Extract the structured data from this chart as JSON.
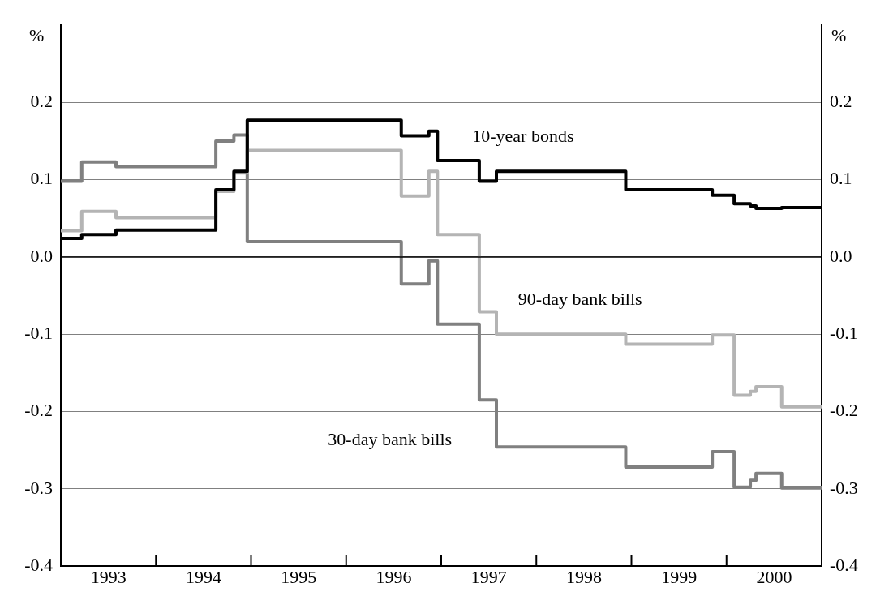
{
  "chart_data": {
    "type": "step",
    "ylabel": "%",
    "y2label": "%",
    "xlim": [
      1993,
      2001
    ],
    "xticks": [
      {
        "value": 1993.5,
        "label": "1993"
      },
      {
        "value": 1994,
        "label": null
      },
      {
        "value": 1994.5,
        "label": "1994"
      },
      {
        "value": 1995,
        "label": null
      },
      {
        "value": 1995.5,
        "label": "1995"
      },
      {
        "value": 1996,
        "label": null
      },
      {
        "value": 1996.5,
        "label": "1996"
      },
      {
        "value": 1997,
        "label": null
      },
      {
        "value": 1997.5,
        "label": "1997"
      },
      {
        "value": 1998,
        "label": null
      },
      {
        "value": 1998.5,
        "label": "1998"
      },
      {
        "value": 1999,
        "label": null
      },
      {
        "value": 1999.5,
        "label": "1999"
      },
      {
        "value": 2000,
        "label": null
      },
      {
        "value": 2000.5,
        "label": "2000"
      }
    ],
    "ylim": [
      -0.4,
      0.3
    ],
    "yticks": [
      -0.4,
      -0.3,
      -0.2,
      -0.1,
      {
        "value": 0,
        "label": "0.0"
      },
      0.1,
      0.2
    ],
    "y2lim": [
      -0.4,
      0.3
    ],
    "y2ticks": [
      -0.4,
      -0.3,
      -0.2,
      -0.1,
      {
        "value": 0,
        "label": "0.0"
      },
      0.1,
      0.2
    ],
    "grid": "y",
    "legend": false,
    "ref_lines": [
      {
        "axis": "y",
        "value": 0,
        "color": "#000000"
      }
    ],
    "series": [
      {
        "name": "10-year bonds",
        "color": "#000000",
        "x": [
          1993,
          1993.22,
          1993.58,
          1994.63,
          1994.82,
          1994.96,
          1996.58,
          1996.87,
          1996.96,
          1997.4,
          1997.58,
          1998.94,
          1999.85,
          2000.08,
          2000.25,
          2000.31,
          2000.58,
          2001
        ],
        "values": [
          0.024,
          0.029,
          0.035,
          0.087,
          0.111,
          0.177,
          0.157,
          0.163,
          0.125,
          0.098,
          0.111,
          0.087,
          0.08,
          0.069,
          0.066,
          0.063,
          0.064,
          0.064
        ]
      },
      {
        "name": "90-day bank bills",
        "color": "#b4b4b4",
        "x": [
          1993,
          1993.22,
          1993.58,
          1994.63,
          1994.82,
          1994.96,
          1996.58,
          1996.87,
          1996.96,
          1997.4,
          1997.58,
          1998.94,
          1999.85,
          2000.08,
          2000.25,
          2000.31,
          2000.58,
          2001
        ],
        "values": [
          0.034,
          0.059,
          0.051,
          0.085,
          0.109,
          0.138,
          0.079,
          0.111,
          0.029,
          -0.071,
          -0.1,
          -0.113,
          -0.101,
          -0.179,
          -0.174,
          -0.168,
          -0.194,
          -0.194
        ]
      },
      {
        "name": "30-day bank bills",
        "color": "#808080",
        "x": [
          1993,
          1993.22,
          1993.58,
          1994.63,
          1994.82,
          1994.96,
          1996.58,
          1996.87,
          1996.96,
          1997.4,
          1997.58,
          1998.94,
          1999.85,
          2000.08,
          2000.25,
          2000.31,
          2000.58,
          2001
        ],
        "values": [
          0.098,
          0.123,
          0.117,
          0.15,
          0.158,
          0.02,
          -0.035,
          -0.005,
          -0.087,
          -0.185,
          -0.246,
          -0.272,
          -0.252,
          -0.298,
          -0.289,
          -0.28,
          -0.299,
          -0.299
        ]
      }
    ]
  }
}
